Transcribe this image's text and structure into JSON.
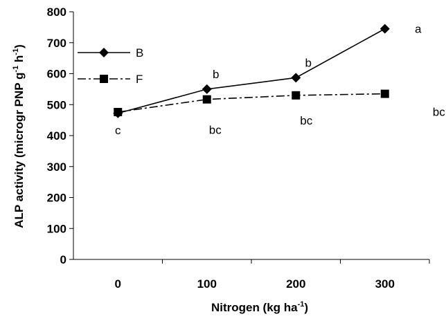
{
  "chart_data": {
    "type": "line",
    "x": [
      0,
      100,
      200,
      300
    ],
    "categories": [
      "0",
      "100",
      "200",
      "300"
    ],
    "xlabel": {
      "main": "Nitrogen (kg ha",
      "sup": "-1",
      "close": ")"
    },
    "ylabel": {
      "main": "ALP activity (microgr PNP g",
      "sup1": "-1",
      "mid": " h",
      "sup2": "-1",
      "close": ")"
    },
    "ylim": [
      0,
      800
    ],
    "yticks": [
      0,
      100,
      200,
      300,
      400,
      500,
      600,
      700,
      800
    ],
    "grid": false,
    "legend_position": "top-left",
    "series": [
      {
        "name": "B",
        "marker": "diamond",
        "line": "solid",
        "color": "#000000",
        "values": [
          472,
          550,
          587,
          745
        ],
        "labels": [
          "c",
          "b",
          "b",
          "a"
        ]
      },
      {
        "name": "F",
        "marker": "square",
        "line": "dash-dot",
        "color": "#000000",
        "values": [
          476,
          517,
          530,
          535
        ],
        "labels": [
          "",
          "bc",
          "bc",
          "bc"
        ]
      }
    ]
  }
}
